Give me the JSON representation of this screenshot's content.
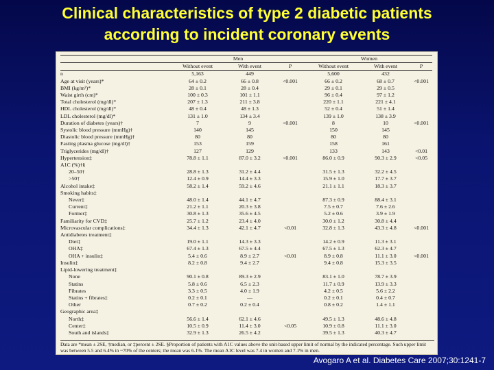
{
  "title": {
    "line1": "Clinical characteristics of type 2 diabetic patients",
    "line2": "according to incident coronary events"
  },
  "table": {
    "group_headers": [
      "Men",
      "Women"
    ],
    "subheaders": [
      "",
      "Without event",
      "With event",
      "P",
      "Without event",
      "With event",
      "P"
    ],
    "rows": [
      [
        "n",
        "5,163",
        "449",
        "",
        "5,600",
        "432",
        ""
      ],
      [
        "Age at visit (years)*",
        "64 ± 0.2",
        "66 ± 0.8",
        "<0.001",
        "66 ± 0.2",
        "68 ± 0.7",
        "<0.001"
      ],
      [
        "BMI (kg/m²)*",
        "28 ± 0.1",
        "28 ± 0.4",
        "",
        "29 ± 0.1",
        "29 ± 0.5",
        ""
      ],
      [
        "Waist girth (cm)*",
        "100 ± 0.3",
        "101 ± 1.1",
        "",
        "96 ± 0.4",
        "97 ± 1.2",
        ""
      ],
      [
        "Total cholesterol (mg/dl)*",
        "207 ± 1.3",
        "211 ± 3.8",
        "",
        "220 ± 1.1",
        "221 ± 4.1",
        ""
      ],
      [
        "HDL cholesterol (mg/dl)*",
        "48 ± 0.4",
        "48 ± 1.3",
        "",
        "52 ± 0.4",
        "51 ± 1.4",
        ""
      ],
      [
        "LDL cholesterol (mg/dl)*",
        "131 ± 1.0",
        "134 ± 3.4",
        "",
        "139 ± 1.0",
        "138 ± 3.9",
        ""
      ],
      [
        "Duration of diabetes (years)†",
        "7",
        "9",
        "<0.001",
        "8",
        "10",
        "<0.001"
      ],
      [
        "Systolic blood pressure (mmHg)†",
        "140",
        "145",
        "",
        "150",
        "145",
        ""
      ],
      [
        "Diastolic blood pressure (mmHg)†",
        "80",
        "80",
        "",
        "80",
        "80",
        ""
      ],
      [
        "Fasting plasma glucose (mg/dl)†",
        "153",
        "159",
        "",
        "158",
        "161",
        ""
      ],
      [
        "Triglycerides (mg/dl)†",
        "127",
        "129",
        "",
        "133",
        "143",
        "<0.01"
      ],
      [
        "Hypertension‡",
        "78.8 ± 1.1",
        "87.0 ± 3.2",
        "<0.001",
        "86.0 ± 0.9",
        "90.3 ± 2.9",
        "<0.05"
      ],
      [
        "A1C (%)†§",
        "",
        "",
        "",
        "",
        "",
        ""
      ],
      [
        "20–50†",
        "28.8 ± 1.3",
        "31.2 ± 4.4",
        "",
        "31.5 ± 1.3",
        "32.2 ± 4.5",
        ""
      ],
      [
        ">50†",
        "12.4 ± 0.9",
        "14.4 ± 3.3",
        "",
        "15.9 ± 1.0",
        "17.7 ± 3.7",
        ""
      ],
      [
        "Alcohol intake‡",
        "58.2 ± 1.4",
        "59.2 ± 4.6",
        "",
        "21.1 ± 1.1",
        "18.3 ± 3.7",
        ""
      ],
      [
        "Smoking habits‡",
        "",
        "",
        "",
        "",
        "",
        ""
      ],
      [
        "Never‡",
        "48.0 ± 1.4",
        "44.1 ± 4.7",
        "",
        "87.3 ± 0.9",
        "88.4 ± 3.1",
        ""
      ],
      [
        "Current‡",
        "21.2 ± 1.1",
        "20.3 ± 3.8",
        "",
        "7.5 ± 0.7",
        "7.6 ± 2.6",
        ""
      ],
      [
        "Former‡",
        "30.8 ± 1.3",
        "35.6 ± 4.5",
        "",
        "5.2 ± 0.6",
        "3.9 ± 1.9",
        ""
      ],
      [
        "Familiarity for CVD‡",
        "25.7 ± 1.2",
        "23.4 ± 4.0",
        "",
        "30.0 ± 1.2",
        "30.8 ± 4.4",
        ""
      ],
      [
        "Microvascular complications‡",
        "34.4 ± 1.3",
        "42.1 ± 4.7",
        "<0.01",
        "32.8 ± 1.3",
        "43.3 ± 4.8",
        "<0.001"
      ],
      [
        "Antidiabetes treatment‡",
        "",
        "",
        "",
        "",
        "",
        ""
      ],
      [
        "Diet‡",
        "19.0 ± 1.1",
        "14.3 ± 3.3",
        "",
        "14.2 ± 0.9",
        "11.3 ± 3.1",
        ""
      ],
      [
        "OHA‡",
        "67.4 ± 1.3",
        "67.5 ± 4.4",
        "",
        "67.5 ± 1.3",
        "62.3 ± 4.7",
        ""
      ],
      [
        "OHA + insulin‡",
        "5.4 ± 0.6",
        "8.9 ± 2.7",
        "<0.01",
        "8.9 ± 0.8",
        "11.1 ± 3.0",
        "<0.001"
      ],
      [
        "Insulin‡",
        "8.2 ± 0.8",
        "9.4 ± 2.7",
        "",
        "9.4 ± 0.8",
        "15.3 ± 3.5",
        ""
      ],
      [
        "Lipid-lowering treatment‡",
        "",
        "",
        "",
        "",
        "",
        ""
      ],
      [
        "None",
        "90.1 ± 0.8",
        "89.3 ± 2.9",
        "",
        "83.1 ± 1.0",
        "78.7 ± 3.9",
        ""
      ],
      [
        "Statins",
        "5.8 ± 0.6",
        "6.5 ± 2.3",
        "",
        "11.7 ± 0.9",
        "13.9 ± 3.3",
        ""
      ],
      [
        "Fibrates",
        "3.3 ± 0.5",
        "4.0 ± 1.9",
        "",
        "4.2 ± 0.5",
        "5.6 ± 2.2",
        ""
      ],
      [
        "Statins + fibrates‡",
        "0.2 ± 0.1",
        "—",
        "",
        "0.2 ± 0.1",
        "0.4 ± 0.7",
        ""
      ],
      [
        "Other",
        "0.7 ± 0.2",
        "0.2 ± 0.4",
        "",
        "0.8 ± 0.2",
        "1.4 ± 1.1",
        ""
      ],
      [
        "Geographic area‡",
        "",
        "",
        "",
        "",
        "",
        ""
      ],
      [
        "North‡",
        "56.6 ± 1.4",
        "62.1 ± 4.6",
        "",
        "49.5 ± 1.3",
        "48.6 ± 4.8",
        ""
      ],
      [
        "Center‡",
        "10.5 ± 0.9",
        "11.4 ± 3.0",
        "<0.05",
        "10.9 ± 0.8",
        "11.1 ± 3.0",
        ""
      ],
      [
        "South and islands‡",
        "32.9 ± 1.3",
        "26.5 ± 4.2",
        "",
        "39.5 ± 1.3",
        "40.3 ± 4.7",
        ""
      ]
    ],
    "indented_rows": [
      14,
      15,
      18,
      19,
      20,
      24,
      25,
      26,
      29,
      30,
      31,
      32,
      33,
      35,
      36,
      37
    ],
    "footnote": "Data are *mean ± 2SE, †median, or ‡percent ± 2SE. §Proportion of patients with A1C values above the unit-based upper limit of normal by the indicated percentage. Such upper limit was between 5.5 and 6.4% in ~70% of the centers; the mean was 6.1%. The mean A1C level was 7.4 in women and 7.1% in men."
  },
  "citation": "Avogaro A et al. Diabetes Care 2007;30:1241-7"
}
